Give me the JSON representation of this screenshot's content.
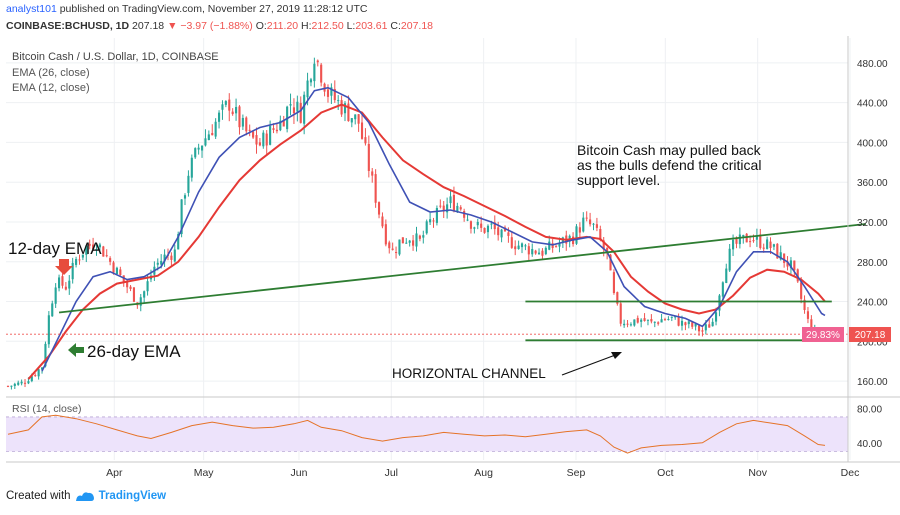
{
  "header": {
    "author": "analyst101",
    "published_text": "published on TradingView.com, November 27, 2019 11:28:12 UTC",
    "symbol": "COINBASE:BCHUSD, 1D",
    "last": "207.18",
    "change": "▼ −3.97 (−1.88%)",
    "open_label": "O:",
    "open": "211.20",
    "high_label": "H:",
    "high": "212.50",
    "low_label": "L:",
    "low": "203.61",
    "close_label": "C:",
    "close": "207.18"
  },
  "legend": {
    "title": "Bitcoin Cash / U.S. Dollar, 1D, COINBASE",
    "ema_slow": "EMA (26, close)",
    "ema_fast": "EMA (12, close)"
  },
  "annotations": {
    "ema12": "12-day EMA",
    "ema26": "26-day EMA",
    "note_line1": "Bitcoin Cash may pulled back",
    "note_line2": "as the bulls defend the critical",
    "note_line3": "support level.",
    "channel": "HORIZONTAL CHANNEL"
  },
  "price_badges": {
    "percent": "29.83%",
    "price": "207.18"
  },
  "rsi": {
    "label": "RSI (14, close)"
  },
  "footer": {
    "created_with": "Created with",
    "brand": "TradingView"
  },
  "colors": {
    "up": "#26a69a",
    "down": "#ef5350",
    "ema26": "#e53935",
    "ema12": "#3f51b5",
    "trendline": "#2e7d32",
    "rsi": "#e57328",
    "rsi_band": "#ede3fb",
    "badge_pct": "#f06292",
    "badge_price": "#ef5350"
  },
  "chart_data": {
    "type": "candlestick",
    "timeframe": "1D",
    "x_tick_labels": [
      "Apr",
      "May",
      "Jun",
      "Jul",
      "Aug",
      "Sep",
      "Oct",
      "Nov",
      "Dec"
    ],
    "y_tick_labels": [
      "160.00",
      "200.00",
      "240.00",
      "280.00",
      "320.00",
      "360.00",
      "400.00",
      "440.00",
      "480.00"
    ],
    "ylim": [
      145,
      505
    ],
    "rsi_tick_labels": [
      "40.00",
      "80.00"
    ],
    "rsi_ylim": [
      20,
      92
    ],
    "rsi_band": [
      30,
      70
    ],
    "price_path": [
      [
        0,
        155
      ],
      [
        4,
        158
      ],
      [
        8,
        168
      ],
      [
        10,
        175
      ],
      [
        12,
        225
      ],
      [
        14,
        260
      ],
      [
        17,
        255
      ],
      [
        20,
        282
      ],
      [
        23,
        295
      ],
      [
        26,
        300
      ],
      [
        29,
        285
      ],
      [
        32,
        270
      ],
      [
        35,
        255
      ],
      [
        38,
        240
      ],
      [
        40,
        250
      ],
      [
        43,
        275
      ],
      [
        46,
        285
      ],
      [
        49,
        290
      ],
      [
        51,
        335
      ],
      [
        53,
        370
      ],
      [
        56,
        395
      ],
      [
        59,
        410
      ],
      [
        62,
        425
      ],
      [
        65,
        440
      ],
      [
        68,
        420
      ],
      [
        71,
        405
      ],
      [
        74,
        398
      ],
      [
        77,
        410
      ],
      [
        80,
        420
      ],
      [
        83,
        440
      ],
      [
        86,
        430
      ],
      [
        88,
        460
      ],
      [
        90,
        490
      ],
      [
        92,
        470
      ],
      [
        94,
        450
      ],
      [
        97,
        440
      ],
      [
        100,
        430
      ],
      [
        103,
        420
      ],
      [
        105,
        390
      ],
      [
        107,
        360
      ],
      [
        109,
        330
      ],
      [
        111,
        305
      ],
      [
        113,
        290
      ],
      [
        115,
        300
      ],
      [
        118,
        305
      ],
      [
        121,
        300
      ],
      [
        124,
        320
      ],
      [
        127,
        330
      ],
      [
        130,
        340
      ],
      [
        133,
        335
      ],
      [
        136,
        320
      ],
      [
        139,
        312
      ],
      [
        142,
        315
      ],
      [
        145,
        305
      ],
      [
        148,
        300
      ],
      [
        151,
        295
      ],
      [
        154,
        292
      ],
      [
        157,
        290
      ],
      [
        160,
        295
      ],
      [
        163,
        300
      ],
      [
        166,
        305
      ],
      [
        169,
        320
      ],
      [
        172,
        315
      ],
      [
        174,
        300
      ],
      [
        176,
        285
      ],
      [
        178,
        245
      ],
      [
        180,
        220
      ],
      [
        183,
        220
      ],
      [
        186,
        222
      ],
      [
        189,
        218
      ],
      [
        192,
        222
      ],
      [
        195,
        223
      ],
      [
        198,
        218
      ],
      [
        201,
        215
      ],
      [
        204,
        210
      ],
      [
        207,
        220
      ],
      [
        209,
        250
      ],
      [
        211,
        280
      ],
      [
        213,
        295
      ],
      [
        215,
        300
      ],
      [
        218,
        305
      ],
      [
        221,
        300
      ],
      [
        224,
        295
      ],
      [
        227,
        285
      ],
      [
        230,
        275
      ],
      [
        232,
        255
      ],
      [
        234,
        230
      ],
      [
        236,
        210
      ],
      [
        238,
        205
      ],
      [
        240,
        207
      ]
    ],
    "ema26_path": [
      [
        6,
        162
      ],
      [
        12,
        185
      ],
      [
        17,
        210
      ],
      [
        22,
        232
      ],
      [
        27,
        248
      ],
      [
        32,
        258
      ],
      [
        38,
        262
      ],
      [
        44,
        266
      ],
      [
        50,
        280
      ],
      [
        56,
        305
      ],
      [
        62,
        335
      ],
      [
        68,
        362
      ],
      [
        74,
        382
      ],
      [
        80,
        398
      ],
      [
        86,
        412
      ],
      [
        92,
        430
      ],
      [
        98,
        438
      ],
      [
        104,
        430
      ],
      [
        110,
        405
      ],
      [
        116,
        382
      ],
      [
        122,
        368
      ],
      [
        128,
        355
      ],
      [
        134,
        346
      ],
      [
        140,
        336
      ],
      [
        146,
        326
      ],
      [
        152,
        315
      ],
      [
        158,
        305
      ],
      [
        164,
        302
      ],
      [
        170,
        305
      ],
      [
        174,
        303
      ],
      [
        178,
        290
      ],
      [
        183,
        265
      ],
      [
        188,
        250
      ],
      [
        193,
        238
      ],
      [
        198,
        232
      ],
      [
        203,
        228
      ],
      [
        208,
        232
      ],
      [
        213,
        246
      ],
      [
        218,
        264
      ],
      [
        223,
        272
      ],
      [
        228,
        270
      ],
      [
        233,
        262
      ],
      [
        238,
        248
      ],
      [
        240,
        240
      ]
    ],
    "ema12_path": [
      [
        10,
        170
      ],
      [
        15,
        205
      ],
      [
        20,
        240
      ],
      [
        25,
        265
      ],
      [
        30,
        270
      ],
      [
        35,
        262
      ],
      [
        40,
        265
      ],
      [
        45,
        275
      ],
      [
        50,
        305
      ],
      [
        56,
        350
      ],
      [
        62,
        385
      ],
      [
        68,
        405
      ],
      [
        74,
        415
      ],
      [
        80,
        420
      ],
      [
        86,
        432
      ],
      [
        90,
        452
      ],
      [
        94,
        455
      ],
      [
        100,
        445
      ],
      [
        106,
        420
      ],
      [
        112,
        378
      ],
      [
        118,
        340
      ],
      [
        124,
        330
      ],
      [
        130,
        332
      ],
      [
        136,
        327
      ],
      [
        142,
        320
      ],
      [
        148,
        310
      ],
      [
        154,
        300
      ],
      [
        160,
        297
      ],
      [
        166,
        302
      ],
      [
        171,
        305
      ],
      [
        176,
        290
      ],
      [
        181,
        255
      ],
      [
        187,
        235
      ],
      [
        193,
        228
      ],
      [
        199,
        223
      ],
      [
        204,
        215
      ],
      [
        209,
        235
      ],
      [
        214,
        270
      ],
      [
        219,
        290
      ],
      [
        224,
        290
      ],
      [
        229,
        280
      ],
      [
        234,
        255
      ],
      [
        239,
        228
      ],
      [
        240,
        226
      ]
    ],
    "rsi_path": [
      [
        0,
        50
      ],
      [
        6,
        55
      ],
      [
        10,
        70
      ],
      [
        14,
        72
      ],
      [
        20,
        68
      ],
      [
        26,
        62
      ],
      [
        32,
        55
      ],
      [
        38,
        48
      ],
      [
        42,
        45
      ],
      [
        48,
        52
      ],
      [
        54,
        60
      ],
      [
        60,
        64
      ],
      [
        66,
        60
      ],
      [
        72,
        57
      ],
      [
        78,
        58
      ],
      [
        84,
        62
      ],
      [
        88,
        66
      ],
      [
        92,
        58
      ],
      [
        98,
        54
      ],
      [
        104,
        46
      ],
      [
        110,
        42
      ],
      [
        116,
        46
      ],
      [
        122,
        48
      ],
      [
        128,
        52
      ],
      [
        134,
        50
      ],
      [
        140,
        48
      ],
      [
        146,
        49
      ],
      [
        152,
        47
      ],
      [
        158,
        50
      ],
      [
        164,
        53
      ],
      [
        170,
        55
      ],
      [
        174,
        48
      ],
      [
        178,
        35
      ],
      [
        182,
        28
      ],
      [
        186,
        34
      ],
      [
        192,
        37
      ],
      [
        198,
        38
      ],
      [
        204,
        40
      ],
      [
        209,
        52
      ],
      [
        214,
        62
      ],
      [
        219,
        66
      ],
      [
        224,
        63
      ],
      [
        229,
        60
      ],
      [
        234,
        48
      ],
      [
        238,
        38
      ],
      [
        240,
        37
      ]
    ],
    "trendline": [
      [
        15,
        229
      ],
      [
        252,
        318
      ]
    ],
    "channel_top": [
      [
        152,
        240
      ],
      [
        242,
        240
      ]
    ],
    "channel_bottom": [
      [
        152,
        201
      ],
      [
        242,
        201
      ]
    ]
  }
}
